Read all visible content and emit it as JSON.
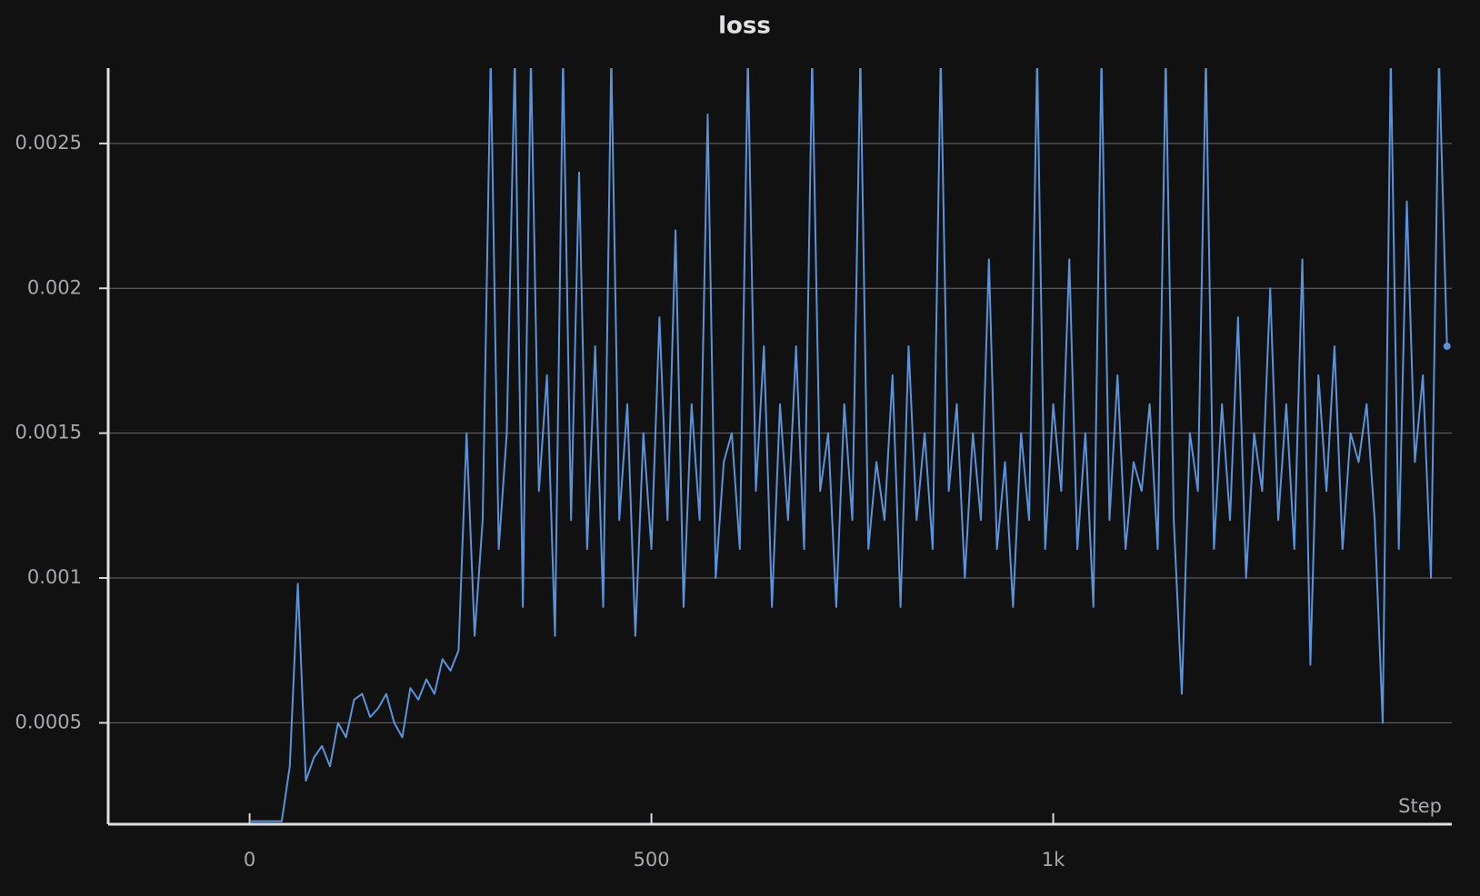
{
  "chart_data": {
    "type": "line",
    "title": "loss",
    "x_label": "Step",
    "x": [
      0,
      10,
      20,
      30,
      40,
      50,
      60,
      70,
      80,
      90,
      100,
      110,
      120,
      130,
      140,
      150,
      160,
      170,
      180,
      190,
      200,
      210,
      220,
      230,
      240,
      250,
      260,
      270,
      280,
      290,
      300,
      310,
      320,
      330,
      340,
      350,
      360,
      370,
      380,
      390,
      400,
      410,
      420,
      430,
      440,
      450,
      460,
      470,
      480,
      490,
      500,
      510,
      520,
      530,
      540,
      550,
      560,
      570,
      580,
      590,
      600,
      610,
      620,
      630,
      640,
      650,
      660,
      670,
      680,
      690,
      700,
      710,
      720,
      730,
      740,
      750,
      760,
      770,
      780,
      790,
      800,
      810,
      820,
      830,
      840,
      850,
      860,
      870,
      880,
      890,
      900,
      910,
      920,
      930,
      940,
      950,
      960,
      970,
      980,
      990,
      1000,
      1010,
      1020,
      1030,
      1040,
      1050,
      1060,
      1070,
      1080,
      1090,
      1100,
      1110,
      1120,
      1130,
      1140,
      1150,
      1160,
      1170,
      1180,
      1190,
      1200,
      1210,
      1220,
      1230,
      1240,
      1250,
      1260,
      1270,
      1280,
      1290,
      1300,
      1310,
      1320,
      1330,
      1340,
      1350,
      1360,
      1370,
      1380,
      1390,
      1400,
      1410,
      1420,
      1430,
      1440,
      1450,
      1460,
      1470,
      1480,
      1490
    ],
    "series": [
      {
        "name": "loss",
        "color": "#5b93d8",
        "values": [
          0.00016,
          0.00016,
          0.00016,
          0.00016,
          0.00016,
          0.00035,
          0.00098,
          0.0003,
          0.00038,
          0.00042,
          0.00035,
          0.0005,
          0.00045,
          0.00058,
          0.0006,
          0.00052,
          0.00055,
          0.0006,
          0.0005,
          0.00045,
          0.00062,
          0.00058,
          0.00065,
          0.0006,
          0.00072,
          0.00068,
          0.00075,
          0.0015,
          0.0008,
          0.0012,
          0.0028,
          0.0011,
          0.0015,
          0.0028,
          0.0009,
          0.0028,
          0.0013,
          0.0017,
          0.0008,
          0.0028,
          0.0012,
          0.0024,
          0.0011,
          0.0018,
          0.0009,
          0.0028,
          0.0012,
          0.0016,
          0.0008,
          0.0015,
          0.0011,
          0.0019,
          0.0012,
          0.0022,
          0.0009,
          0.0016,
          0.0012,
          0.0026,
          0.001,
          0.0014,
          0.0015,
          0.0011,
          0.0028,
          0.0013,
          0.0018,
          0.0009,
          0.0016,
          0.0012,
          0.0018,
          0.0011,
          0.0028,
          0.0013,
          0.0015,
          0.0009,
          0.0016,
          0.0012,
          0.0028,
          0.0011,
          0.0014,
          0.0012,
          0.0017,
          0.0009,
          0.0018,
          0.0012,
          0.0015,
          0.0011,
          0.0028,
          0.0013,
          0.0016,
          0.001,
          0.0015,
          0.0012,
          0.0021,
          0.0011,
          0.0014,
          0.0009,
          0.0015,
          0.0012,
          0.0028,
          0.0011,
          0.0016,
          0.0013,
          0.0021,
          0.0011,
          0.0015,
          0.0009,
          0.0028,
          0.0012,
          0.0017,
          0.0011,
          0.0014,
          0.0013,
          0.0016,
          0.0011,
          0.0028,
          0.0012,
          0.0006,
          0.0015,
          0.0013,
          0.0028,
          0.0011,
          0.0016,
          0.0012,
          0.0019,
          0.001,
          0.0015,
          0.0013,
          0.002,
          0.0012,
          0.0016,
          0.0011,
          0.0021,
          0.0007,
          0.0017,
          0.0013,
          0.0018,
          0.0011,
          0.0015,
          0.0014,
          0.0016,
          0.0012,
          0.0005,
          0.0028,
          0.0011,
          0.0023,
          0.0014,
          0.0017,
          0.001,
          0.0028,
          0.0018
        ]
      }
    ],
    "xlim": [
      -176,
      1496
    ],
    "ylim": [
      0.00015,
      0.00276
    ],
    "xticks": [
      0,
      500,
      {
        "value": 1000,
        "label": "1k"
      }
    ],
    "yticks": [
      0.0005,
      0.001,
      0.0015,
      0.002,
      0.0025
    ],
    "grid": true
  }
}
